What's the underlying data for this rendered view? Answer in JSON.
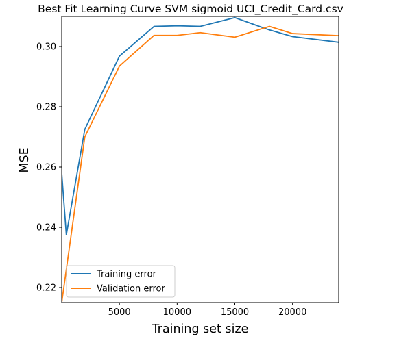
{
  "chart_data": {
    "type": "line",
    "title": "Best Fit Learning Curve SVM sigmoid UCI_Credit_Card.csv",
    "xlabel": "Training set size",
    "ylabel": "MSE",
    "xlim": [
      0,
      24000
    ],
    "ylim": [
      0.215,
      0.31
    ],
    "x_ticks": [
      5000,
      10000,
      15000,
      20000
    ],
    "y_ticks": [
      0.22,
      0.24,
      0.26,
      0.28,
      0.3
    ],
    "y_tick_labels": [
      "0.22",
      "0.24",
      "0.26",
      "0.28",
      "0.30"
    ],
    "grid": false,
    "legend_position": "lower left",
    "series": [
      {
        "name": "Training error",
        "color": "#1f77b4",
        "x": [
          0,
          400,
          2000,
          5000,
          8000,
          10000,
          12000,
          15000,
          18000,
          20000,
          24000
        ],
        "y": [
          0.258,
          0.2375,
          0.2725,
          0.2968,
          0.3067,
          0.3069,
          0.3067,
          0.3096,
          0.3055,
          0.3033,
          0.3014
        ]
      },
      {
        "name": "Validation error",
        "color": "#ff7f0e",
        "x": [
          0,
          2000,
          5000,
          8000,
          10000,
          12000,
          15000,
          18000,
          20000,
          24000
        ],
        "y": [
          0.215,
          0.27,
          0.2935,
          0.3037,
          0.3037,
          0.3046,
          0.3031,
          0.3067,
          0.3043,
          0.3036
        ]
      }
    ]
  }
}
